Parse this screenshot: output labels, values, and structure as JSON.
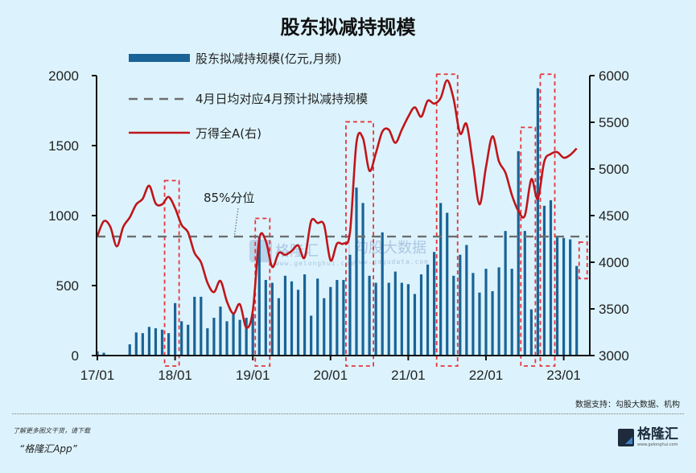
{
  "title": "股东拟减持规模",
  "legend": {
    "bar": "股东拟减持规模(亿元,月频)",
    "dashed": "4月日均对应4月预计拟减持规模",
    "line": "万得全A(右)"
  },
  "annotation": "85%分位",
  "watermark": {
    "brand1": "格隆汇",
    "brand2": "勾股大数据",
    "url1": "www.gelonghui.com",
    "url2": "www.gogudata.com"
  },
  "source": "数据支持：勾股大数据、机构",
  "footer": {
    "promo_line1": "了解更多图文干货，请下载",
    "promo_line2": "“格隆汇App”",
    "brand_name": "格隆汇",
    "brand_url": "www.gelonghui.com"
  },
  "colors": {
    "bar": "#1a6396",
    "line": "#c0151a",
    "dashed": "#6e6e6e",
    "highlight_box": "#e8343a",
    "background": "#dcf3fd"
  },
  "chart_data": {
    "type": "bar+line",
    "title": "股东拟减持规模",
    "xlabel": "",
    "ylabel_left": "亿元",
    "ylabel_right": "万得全A",
    "ylim_left": [
      0,
      2000
    ],
    "ylim_right": [
      3000,
      6000
    ],
    "yticks_left": [
      0,
      500,
      1000,
      1500,
      2000
    ],
    "yticks_right": [
      3000,
      3500,
      4000,
      4500,
      5000,
      5500,
      6000
    ],
    "xticks": [
      "17/01",
      "18/01",
      "19/01",
      "20/01",
      "21/01",
      "22/01",
      "23/01"
    ],
    "grid": false,
    "legend_position": "top-left",
    "dashed_line_value": 850,
    "annotation": {
      "text": "85%分位",
      "x_month_index": 21,
      "y_value": 850
    },
    "months_start": "2017-01",
    "series": [
      {
        "name": "股东拟减持规模(亿元,月频)",
        "type": "bar",
        "axis": "left",
        "values": [
          30,
          20,
          0,
          5,
          0,
          80,
          165,
          160,
          205,
          195,
          185,
          160,
          375,
          245,
          220,
          420,
          420,
          195,
          270,
          350,
          245,
          300,
          255,
          270,
          300,
          850,
          540,
          520,
          410,
          570,
          530,
          470,
          580,
          285,
          550,
          410,
          490,
          540,
          540,
          720,
          1200,
          1090,
          570,
          520,
          880,
          520,
          600,
          520,
          510,
          440,
          580,
          650,
          740,
          1090,
          1020,
          570,
          720,
          790,
          590,
          450,
          620,
          460,
          630,
          890,
          620,
          1460,
          890,
          330,
          1910,
          1070,
          1110,
          850,
          840,
          830,
          640
        ]
      },
      {
        "name": "万得全A(右)",
        "type": "line",
        "axis": "right",
        "values": [
          4280,
          4440,
          4380,
          4170,
          4380,
          4480,
          4620,
          4680,
          4820,
          4630,
          4620,
          4700,
          4580,
          4400,
          4320,
          4100,
          4000,
          3780,
          3680,
          3800,
          3580,
          3450,
          3550,
          3300,
          3480,
          4250,
          4230,
          3950,
          4100,
          4080,
          4120,
          4180,
          4050,
          4440,
          4420,
          4400,
          4020,
          4200,
          4200,
          4320,
          5280,
          5330,
          4980,
          5170,
          5400,
          5420,
          5280,
          5420,
          5560,
          5660,
          5560,
          5730,
          5700,
          5760,
          5950,
          5750,
          5380,
          5480,
          5050,
          4620,
          5020,
          5350,
          5080,
          4960,
          4720,
          4550,
          4500,
          4890,
          4680,
          5080,
          5160,
          5180,
          5120,
          5150,
          5220
        ]
      },
      {
        "name": "4月日均对应4月预计拟减持规模",
        "type": "dashed-hline",
        "axis": "left",
        "value": 850
      }
    ],
    "highlight_boxes": [
      {
        "from_month": 11,
        "to_month": 12,
        "top_value": 1250
      },
      {
        "from_month": 25,
        "to_month": 26,
        "top_value": 980
      },
      {
        "from_month": 39,
        "to_month": 42,
        "top_value": 1670
      },
      {
        "from_month": 53,
        "to_month": 55,
        "top_value": 2010
      },
      {
        "from_month": 66,
        "to_month": 67,
        "top_value": 1630
      },
      {
        "from_month": 69,
        "to_month": 70,
        "top_value": 2010
      },
      {
        "from_month": 75,
        "to_month": 75,
        "top_value": 810,
        "bottom_value": 550
      }
    ]
  }
}
